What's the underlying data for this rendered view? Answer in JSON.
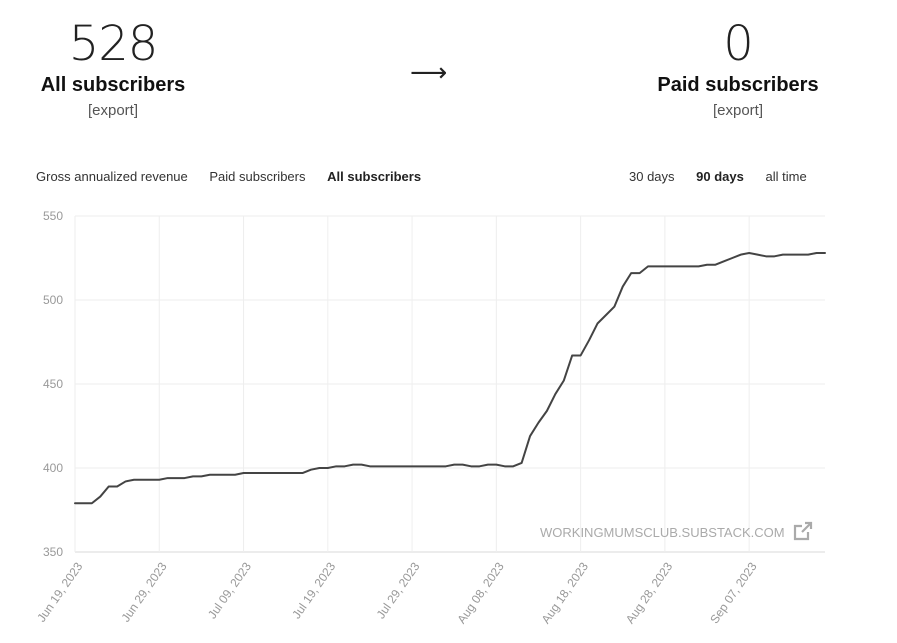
{
  "stats": {
    "all": {
      "value": "528",
      "label": "All subscribers",
      "export": "[export]"
    },
    "paid": {
      "value": "0",
      "label": "Paid subscribers",
      "export": "[export]"
    },
    "arrow": "⟶"
  },
  "metric_tabs": [
    {
      "label": "Gross annualized revenue",
      "active": false
    },
    {
      "label": "Paid subscribers",
      "active": false
    },
    {
      "label": "All subscribers",
      "active": true
    }
  ],
  "range_tabs": [
    {
      "label": "30 days",
      "active": false
    },
    {
      "label": "90 days",
      "active": true
    },
    {
      "label": "all time",
      "active": false
    }
  ],
  "watermark": "WORKINGMUMSCLUB.SUBSTACK.COM",
  "chart_data": {
    "type": "line",
    "title": "",
    "xlabel": "",
    "ylabel": "",
    "ylim": [
      350,
      550
    ],
    "yticks": [
      350,
      400,
      450,
      500,
      550
    ],
    "xticks": [
      "Jun 19, 2023",
      "Jun 29, 2023",
      "Jul 09, 2023",
      "Jul 19, 2023",
      "Jul 29, 2023",
      "Aug 08, 2023",
      "Aug 18, 2023",
      "Aug 28, 2023",
      "Sep 07, 2023"
    ],
    "x_start": "2023-06-19",
    "x_end": "2023-09-16",
    "grid": true,
    "color": "#444444",
    "series": [
      {
        "x": [
          "2023-06-19",
          "2023-06-20",
          "2023-06-21",
          "2023-06-22",
          "2023-06-23",
          "2023-06-24",
          "2023-06-25",
          "2023-06-26",
          "2023-06-27",
          "2023-06-28",
          "2023-06-29",
          "2023-06-30",
          "2023-07-01",
          "2023-07-02",
          "2023-07-03",
          "2023-07-04",
          "2023-07-05",
          "2023-07-06",
          "2023-07-07",
          "2023-07-08",
          "2023-07-09",
          "2023-07-10",
          "2023-07-11",
          "2023-07-12",
          "2023-07-13",
          "2023-07-14",
          "2023-07-15",
          "2023-07-16",
          "2023-07-17",
          "2023-07-18",
          "2023-07-19",
          "2023-07-20",
          "2023-07-21",
          "2023-07-22",
          "2023-07-23",
          "2023-07-24",
          "2023-07-25",
          "2023-07-26",
          "2023-07-27",
          "2023-07-28",
          "2023-07-29",
          "2023-07-30",
          "2023-07-31",
          "2023-08-01",
          "2023-08-02",
          "2023-08-03",
          "2023-08-04",
          "2023-08-05",
          "2023-08-06",
          "2023-08-07",
          "2023-08-08",
          "2023-08-09",
          "2023-08-10",
          "2023-08-11",
          "2023-08-12",
          "2023-08-13",
          "2023-08-14",
          "2023-08-15",
          "2023-08-16",
          "2023-08-17",
          "2023-08-18",
          "2023-08-19",
          "2023-08-20",
          "2023-08-21",
          "2023-08-22",
          "2023-08-23",
          "2023-08-24",
          "2023-08-25",
          "2023-08-26",
          "2023-08-27",
          "2023-08-28",
          "2023-08-29",
          "2023-08-30",
          "2023-08-31",
          "2023-09-01",
          "2023-09-02",
          "2023-09-03",
          "2023-09-04",
          "2023-09-05",
          "2023-09-06",
          "2023-09-07",
          "2023-09-08",
          "2023-09-09",
          "2023-09-10",
          "2023-09-11",
          "2023-09-12",
          "2023-09-13",
          "2023-09-14",
          "2023-09-15",
          "2023-09-16"
        ],
        "values": [
          379,
          379,
          379,
          383,
          389,
          389,
          392,
          393,
          393,
          393,
          393,
          394,
          394,
          394,
          395,
          395,
          396,
          396,
          396,
          396,
          397,
          397,
          397,
          397,
          397,
          397,
          397,
          397,
          399,
          400,
          400,
          401,
          401,
          402,
          402,
          401,
          401,
          401,
          401,
          401,
          401,
          401,
          401,
          401,
          401,
          402,
          402,
          401,
          401,
          402,
          402,
          401,
          401,
          403,
          419,
          427,
          434,
          444,
          452,
          467,
          467,
          476,
          486,
          491,
          496,
          508,
          516,
          516,
          520,
          520,
          520,
          520,
          520,
          520,
          520,
          521,
          521,
          523,
          525,
          527,
          528,
          527,
          526,
          526,
          527,
          527,
          527,
          527,
          528,
          528
        ]
      }
    ]
  }
}
